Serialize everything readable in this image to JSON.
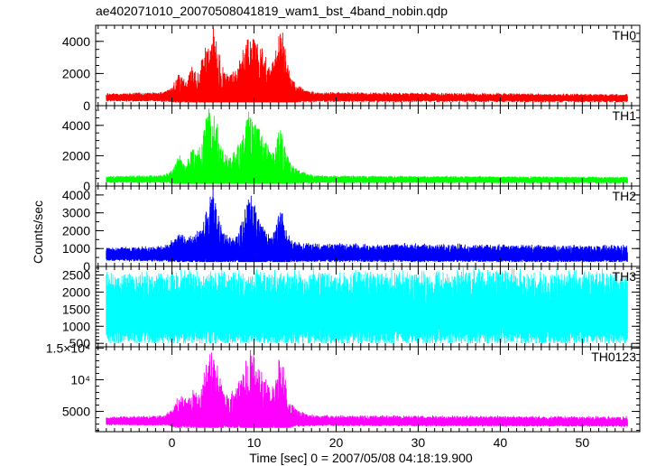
{
  "chart_data": {
    "type": "line",
    "title": "ae402071010_20070508041819_wam1_bst_4band_nobin.qdp",
    "xlabel": "Time [sec] 0 = 2007/05/08 04:18:19.900",
    "ylabel": "Counts/sec",
    "xlim": [
      -9.3,
      57.0
    ],
    "x_ticks": [
      0,
      10,
      20,
      30,
      40,
      50
    ],
    "x_tick_labels": [
      "0",
      "10",
      "20",
      "30",
      "40",
      "50"
    ],
    "grid": false,
    "legend": "none",
    "envelope_key": [
      "time_sec",
      "peak_counts"
    ],
    "panels": [
      {
        "name": "TH0",
        "color": "#ff0000",
        "ylim": [
          0,
          5000
        ],
        "y_ticks": [
          0,
          2000,
          4000
        ],
        "y_tick_labels": [
          "0",
          "2000",
          "4000"
        ],
        "y_minor_step": 500,
        "baseline": [
          -8,
          550,
          55.5,
          500
        ],
        "floor": 200,
        "noise": 230,
        "envelope": [
          [
            -8,
            700
          ],
          [
            -1,
            800
          ],
          [
            0,
            1100
          ],
          [
            1,
            2200
          ],
          [
            1.5,
            1600
          ],
          [
            2,
            1800
          ],
          [
            2.5,
            2600
          ],
          [
            3,
            2000
          ],
          [
            3.5,
            2600
          ],
          [
            4,
            3600
          ],
          [
            4.5,
            4300
          ],
          [
            5,
            5000
          ],
          [
            5.5,
            4200
          ],
          [
            6,
            2800
          ],
          [
            6.5,
            2100
          ],
          [
            7,
            2000
          ],
          [
            7.5,
            2200
          ],
          [
            8,
            2500
          ],
          [
            8.5,
            3300
          ],
          [
            9,
            4300
          ],
          [
            9.5,
            5000
          ],
          [
            10,
            4600
          ],
          [
            10.5,
            4200
          ],
          [
            11,
            3700
          ],
          [
            11.5,
            3300
          ],
          [
            12,
            2400
          ],
          [
            12.5,
            3000
          ],
          [
            13,
            4600
          ],
          [
            13.5,
            5000
          ],
          [
            14,
            3000
          ],
          [
            14.5,
            1800
          ],
          [
            15,
            1500
          ],
          [
            15.5,
            1200
          ],
          [
            16.5,
            900
          ],
          [
            18,
            800
          ],
          [
            56,
            650
          ]
        ]
      },
      {
        "name": "TH1",
        "color": "#00ff00",
        "ylim": [
          0,
          5300
        ],
        "y_ticks": [
          0,
          2000,
          4000
        ],
        "y_tick_labels": [
          "0",
          "2000",
          "4000"
        ],
        "y_minor_step": 500,
        "baseline": [
          -8,
          450,
          55.5,
          420
        ],
        "floor": 150,
        "noise": 190,
        "envelope": [
          [
            -8,
            600
          ],
          [
            -1,
            700
          ],
          [
            0,
            1100
          ],
          [
            1,
            2100
          ],
          [
            1.5,
            1500
          ],
          [
            2,
            1800
          ],
          [
            2.5,
            2800
          ],
          [
            3,
            2200
          ],
          [
            3.5,
            2800
          ],
          [
            4,
            4300
          ],
          [
            4.5,
            5300
          ],
          [
            5,
            5000
          ],
          [
            5.5,
            4200
          ],
          [
            6,
            2800
          ],
          [
            6.5,
            2100
          ],
          [
            7,
            2000
          ],
          [
            7.5,
            2300
          ],
          [
            8,
            2700
          ],
          [
            8.5,
            3600
          ],
          [
            9,
            4700
          ],
          [
            9.5,
            5300
          ],
          [
            10,
            4800
          ],
          [
            10.5,
            4200
          ],
          [
            11,
            3800
          ],
          [
            11.5,
            3300
          ],
          [
            12,
            2300
          ],
          [
            12.5,
            2700
          ],
          [
            13,
            3800
          ],
          [
            13.5,
            3900
          ],
          [
            14,
            2300
          ],
          [
            14.5,
            1500
          ],
          [
            15,
            1300
          ],
          [
            15.5,
            1100
          ],
          [
            16.5,
            800
          ],
          [
            18,
            650
          ],
          [
            56,
            560
          ]
        ]
      },
      {
        "name": "TH2",
        "color": "#0000ff",
        "ylim": [
          0,
          4500
        ],
        "y_ticks": [
          0,
          1000,
          2000,
          3000,
          4000
        ],
        "y_tick_labels": [
          "0",
          "1000",
          "2000",
          "3000",
          "4000"
        ],
        "y_minor_step": 500,
        "baseline": [
          -8,
          650,
          55.5,
          600
        ],
        "floor": 250,
        "noise": 270,
        "envelope": [
          [
            -8,
            1000
          ],
          [
            -1,
            1100
          ],
          [
            0,
            1400
          ],
          [
            1,
            2000
          ],
          [
            1.5,
            1700
          ],
          [
            2,
            1600
          ],
          [
            2.5,
            1900
          ],
          [
            3,
            2000
          ],
          [
            3.5,
            2200
          ],
          [
            4,
            3200
          ],
          [
            4.5,
            4200
          ],
          [
            5,
            4500
          ],
          [
            5.5,
            3500
          ],
          [
            6,
            2300
          ],
          [
            6.5,
            1800
          ],
          [
            7,
            1700
          ],
          [
            7.5,
            1600
          ],
          [
            8,
            1900
          ],
          [
            8.5,
            2600
          ],
          [
            9,
            3300
          ],
          [
            9.5,
            4200
          ],
          [
            10,
            3800
          ],
          [
            10.5,
            2700
          ],
          [
            11,
            2300
          ],
          [
            11.5,
            2000
          ],
          [
            12,
            1700
          ],
          [
            12.5,
            2000
          ],
          [
            13,
            3300
          ],
          [
            13.5,
            3300
          ],
          [
            14,
            1900
          ],
          [
            14.5,
            1500
          ],
          [
            15,
            1350
          ],
          [
            16,
            1300
          ],
          [
            18,
            1250
          ],
          [
            56,
            1150
          ]
        ]
      },
      {
        "name": "TH3",
        "color": "#00ffff",
        "ylim": [
          400,
          2750
        ],
        "y_ticks": [
          500,
          1000,
          1500,
          2000,
          2500
        ],
        "y_tick_labels": [
          "500",
          "1000",
          "1500",
          "2000",
          "2500"
        ],
        "y_minor_step": 100,
        "baseline": [
          -8,
          1400,
          55.5,
          1400
        ],
        "floor": 500,
        "noise": 680,
        "envelope": [
          [
            -8,
            2500
          ],
          [
            56,
            2500
          ]
        ]
      },
      {
        "name": "TH0123",
        "color": "#ff00ff",
        "ylim": [
          1800,
          15200
        ],
        "y_ticks": [
          5000,
          10000,
          15000
        ],
        "y_tick_labels": [
          "5000",
          "10⁴",
          "1.5×10⁴"
        ],
        "y_minor_step": 1000,
        "baseline": [
          -8,
          3500,
          55.5,
          3300
        ],
        "floor": 2400,
        "noise": 550,
        "envelope": [
          [
            -8,
            4000
          ],
          [
            -1,
            4300
          ],
          [
            0,
            5200
          ],
          [
            1,
            8500
          ],
          [
            1.5,
            7200
          ],
          [
            2,
            7300
          ],
          [
            2.5,
            9000
          ],
          [
            3,
            8000
          ],
          [
            3.5,
            9000
          ],
          [
            4,
            12000
          ],
          [
            4.5,
            14200
          ],
          [
            5,
            15000
          ],
          [
            5.5,
            13000
          ],
          [
            6,
            9500
          ],
          [
            6.5,
            8000
          ],
          [
            7,
            7800
          ],
          [
            7.5,
            8500
          ],
          [
            8,
            9500
          ],
          [
            8.5,
            11500
          ],
          [
            9,
            13800
          ],
          [
            9.5,
            15000
          ],
          [
            10,
            14500
          ],
          [
            10.5,
            12800
          ],
          [
            11,
            11500
          ],
          [
            11.5,
            10500
          ],
          [
            12,
            8500
          ],
          [
            12.5,
            9500
          ],
          [
            13,
            13500
          ],
          [
            13.5,
            13800
          ],
          [
            14,
            9000
          ],
          [
            14.5,
            6500
          ],
          [
            15,
            5700
          ],
          [
            15.5,
            5000
          ],
          [
            16.5,
            4500
          ],
          [
            18,
            4300
          ],
          [
            56,
            4100
          ]
        ]
      }
    ]
  }
}
